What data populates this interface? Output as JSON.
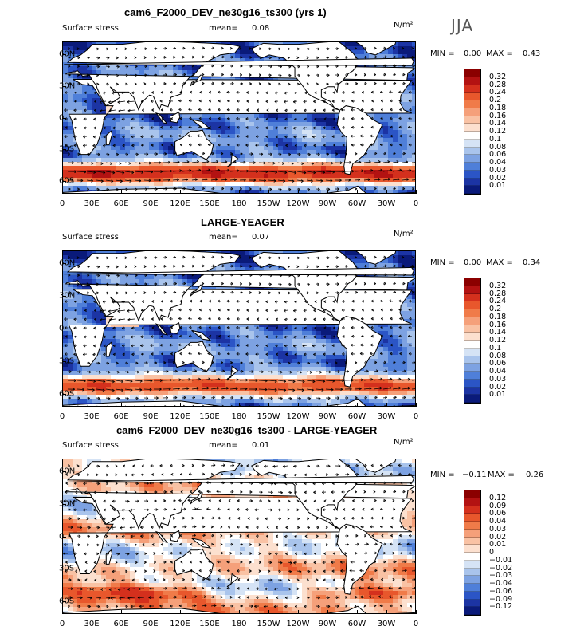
{
  "header": {
    "title": "cam6_F2000_DEV_ne30g16_ts300 (yrs 1)",
    "season": "JJA"
  },
  "panels": [
    {
      "title": "",
      "variable": "Surface stress",
      "mean_label": "mean=",
      "mean_value": "0.08",
      "units": "N/m²",
      "min_label": "MIN =",
      "min_value": "0.00",
      "max_label": "MAX =",
      "max_value": "0.43",
      "levels": [
        "0.32",
        "0.28",
        "0.24",
        "0.2",
        "0.18",
        "0.16",
        "0.14",
        "0.12",
        "0.1",
        "0.08",
        "0.06",
        "0.04",
        "0.03",
        "0.02",
        "0.01"
      ],
      "colors": [
        "#8b0000",
        "#b31212",
        "#d4301d",
        "#e8572c",
        "#f07b49",
        "#f5a07a",
        "#f9c2a4",
        "#fce0cf",
        "#ffffff",
        "#d5e3f5",
        "#a9c4ec",
        "#7da2e2",
        "#4f7fd9",
        "#2b55c6",
        "#1c34a4",
        "#0a1a7a"
      ]
    },
    {
      "title": "LARGE-YEAGER",
      "variable": "Surface stress",
      "mean_label": "mean=",
      "mean_value": "0.07",
      "units": "N/m²",
      "min_label": "MIN =",
      "min_value": "0.00",
      "max_label": "MAX =",
      "max_value": "0.34",
      "levels": [
        "0.32",
        "0.28",
        "0.24",
        "0.2",
        "0.18",
        "0.16",
        "0.14",
        "0.12",
        "0.1",
        "0.08",
        "0.06",
        "0.04",
        "0.03",
        "0.02",
        "0.01"
      ],
      "colors": [
        "#8b0000",
        "#b31212",
        "#d4301d",
        "#e8572c",
        "#f07b49",
        "#f5a07a",
        "#f9c2a4",
        "#fce0cf",
        "#ffffff",
        "#d5e3f5",
        "#a9c4ec",
        "#7da2e2",
        "#4f7fd9",
        "#2b55c6",
        "#1c34a4",
        "#0a1a7a"
      ]
    },
    {
      "title": "cam6_F2000_DEV_ne30g16_ts300 - LARGE-YEAGER",
      "variable": "Surface stress",
      "mean_label": "mean=",
      "mean_value": "0.01",
      "units": "N/m²",
      "min_label": "MIN =",
      "min_value": "−0.11",
      "max_label": "MAX =",
      "max_value": "0.26",
      "levels": [
        "0.12",
        "0.09",
        "0.06",
        "0.04",
        "0.03",
        "0.02",
        "0.01",
        "0",
        "−0.01",
        "−0.02",
        "−0.03",
        "−0.04",
        "−0.06",
        "−0.09",
        "−0.12"
      ],
      "colors": [
        "#8b0000",
        "#b31212",
        "#d4301d",
        "#e8572c",
        "#f07b49",
        "#f5a07a",
        "#f9c2a4",
        "#fce0cf",
        "#ffffff",
        "#d5e3f5",
        "#a9c4ec",
        "#7da2e2",
        "#4f7fd9",
        "#2b55c6",
        "#1c34a4",
        "#0a1a7a"
      ]
    }
  ],
  "axes": {
    "lat_labels": [
      "60N",
      "30N",
      "0",
      "30S",
      "60S"
    ],
    "lon_labels": [
      "0",
      "30E",
      "60E",
      "90E",
      "120E",
      "150E",
      "180",
      "150W",
      "120W",
      "90W",
      "60W",
      "30W",
      "0"
    ]
  }
}
